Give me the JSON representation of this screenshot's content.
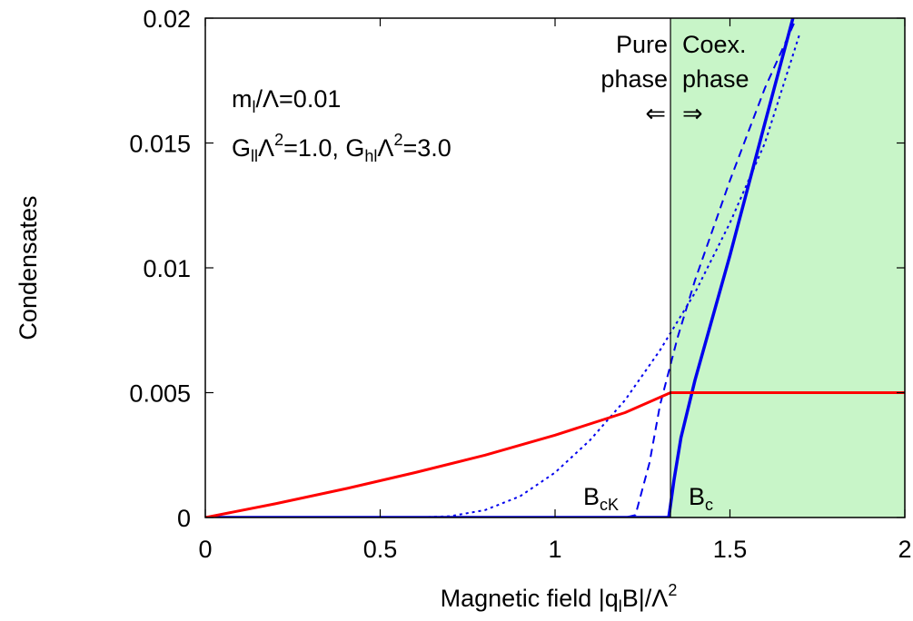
{
  "chart_data": {
    "type": "line",
    "xlabel": {
      "base": "Magnetic field |q",
      "sub": "l",
      "mid": "B|/Λ",
      "sup": "2"
    },
    "ylabel": "Condensates",
    "xlim": [
      0,
      2
    ],
    "ylim": [
      0,
      0.02
    ],
    "x_ticks": [
      {
        "value": 0,
        "label": "0"
      },
      {
        "value": 0.5,
        "label": "0.5"
      },
      {
        "value": 1,
        "label": "1"
      },
      {
        "value": 1.5,
        "label": "1.5"
      },
      {
        "value": 2,
        "label": "2"
      }
    ],
    "y_ticks": [
      {
        "value": 0,
        "label": "0"
      },
      {
        "value": 0.005,
        "label": "0.005"
      },
      {
        "value": 0.01,
        "label": "0.01"
      },
      {
        "value": 0.015,
        "label": "0.015"
      },
      {
        "value": 0.02,
        "label": "0.02"
      }
    ],
    "grid": false,
    "legend": "none",
    "coexistence_region": {
      "x_start": 1.33,
      "x_end": 2,
      "color": "#c8f5c8"
    },
    "phase_boundary_x": 1.33,
    "series": [
      {
        "style": "solid",
        "color": "#ff0000",
        "width": 3,
        "x": [
          0,
          0.2,
          0.4,
          0.6,
          0.8,
          1.0,
          1.2,
          1.33,
          1.4,
          2.0
        ],
        "y": [
          0,
          0.00055,
          0.00115,
          0.0018,
          0.0025,
          0.0033,
          0.0042,
          0.005,
          0.005,
          0.005
        ]
      },
      {
        "style": "solid",
        "color": "#0000ee",
        "width": 3.5,
        "x": [
          0,
          1.325,
          1.33,
          1.34,
          1.36,
          1.4,
          1.5,
          1.6,
          1.68
        ],
        "y": [
          0,
          0,
          0.0005,
          0.0015,
          0.0032,
          0.0055,
          0.0105,
          0.0158,
          0.02
        ]
      },
      {
        "style": "dashed",
        "color": "#0000ee",
        "width": 2,
        "x": [
          0,
          1.0,
          1.2,
          1.23,
          1.27,
          1.3,
          1.35,
          1.4,
          1.5,
          1.6,
          1.69
        ],
        "y": [
          0,
          0,
          0,
          0.0001,
          0.0022,
          0.0045,
          0.0072,
          0.0095,
          0.0135,
          0.0172,
          0.02
        ]
      },
      {
        "style": "dotted",
        "color": "#0000ee",
        "width": 2,
        "x": [
          0,
          0.6,
          0.7,
          0.8,
          0.9,
          1.0,
          1.1,
          1.2,
          1.3,
          1.4,
          1.5,
          1.6,
          1.7
        ],
        "y": [
          0,
          0,
          5e-05,
          0.0003,
          0.00085,
          0.0018,
          0.0031,
          0.0047,
          0.0067,
          0.009,
          0.0118,
          0.015,
          0.0194
        ]
      }
    ],
    "annotations": {
      "param1": {
        "m": "m",
        "m_sub": "l",
        "rest": "/Λ=0.01"
      },
      "param2": {
        "g1": "G",
        "g1_sub": "ll",
        "g1_mid": "Λ",
        "g1_sup": "2",
        "g1_rest": "=1.0, G",
        "g2_sub": "hl",
        "g2_mid": "Λ",
        "g2_sup": "2",
        "g2_rest": "=3.0"
      },
      "pure_line1": "Pure",
      "pure_line2": "phase",
      "pure_arrow": "⇐",
      "coex_line1": "Coex.",
      "coex_line2": "phase",
      "coex_arrow": "⇒",
      "bck": {
        "base": "B",
        "sub": "cK"
      },
      "bc": {
        "base": "B",
        "sub": "c"
      }
    }
  }
}
